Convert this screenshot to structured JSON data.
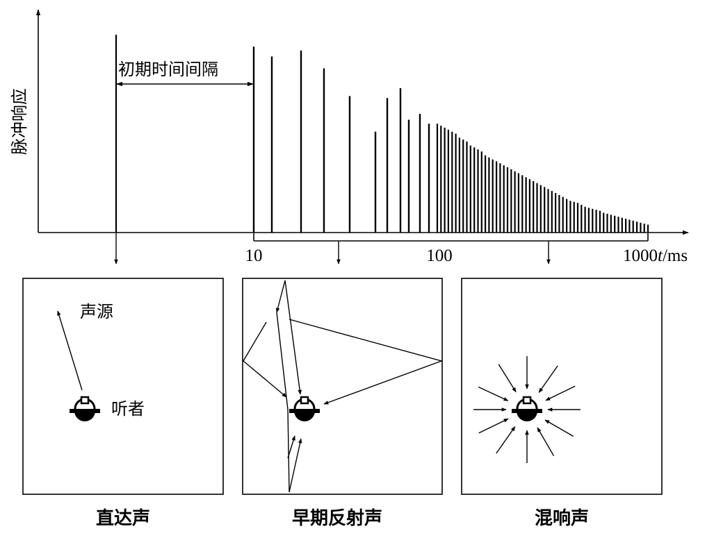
{
  "chart": {
    "ylabel": "脉冲响应",
    "xunit_t": "t",
    "xunit": "/ms",
    "ticks": [
      "10",
      "100",
      "1000"
    ],
    "gap_label": "初期时间间隔",
    "direct_pulse": 1.0,
    "early_pulses": [
      0.94,
      0.89,
      0.92,
      0.83,
      0.69,
      0.51,
      0.68,
      0.73,
      0.57,
      0.6,
      0.55
    ],
    "reverb_pulses": [
      0.55,
      0.54,
      0.53,
      0.52,
      0.51,
      0.5,
      0.48,
      0.47,
      0.46,
      0.44,
      0.43,
      0.42,
      0.41,
      0.39,
      0.38,
      0.37,
      0.36,
      0.35,
      0.34,
      0.33,
      0.32,
      0.31,
      0.3,
      0.29,
      0.28,
      0.27,
      0.26,
      0.25,
      0.24,
      0.23,
      0.22,
      0.21,
      0.2,
      0.19,
      0.18,
      0.17,
      0.16,
      0.155,
      0.15,
      0.14,
      0.13,
      0.125,
      0.12,
      0.115,
      0.11,
      0.1,
      0.095,
      0.09,
      0.085,
      0.08,
      0.075,
      0.07,
      0.065,
      0.06,
      0.055,
      0.05,
      0.045,
      0.04
    ]
  },
  "panels": {
    "direct": {
      "caption": "直达声",
      "source_label": "声源",
      "listener_label": "听者"
    },
    "early": {
      "caption": "早期反射声"
    },
    "reverb": {
      "caption": "混响声"
    }
  }
}
